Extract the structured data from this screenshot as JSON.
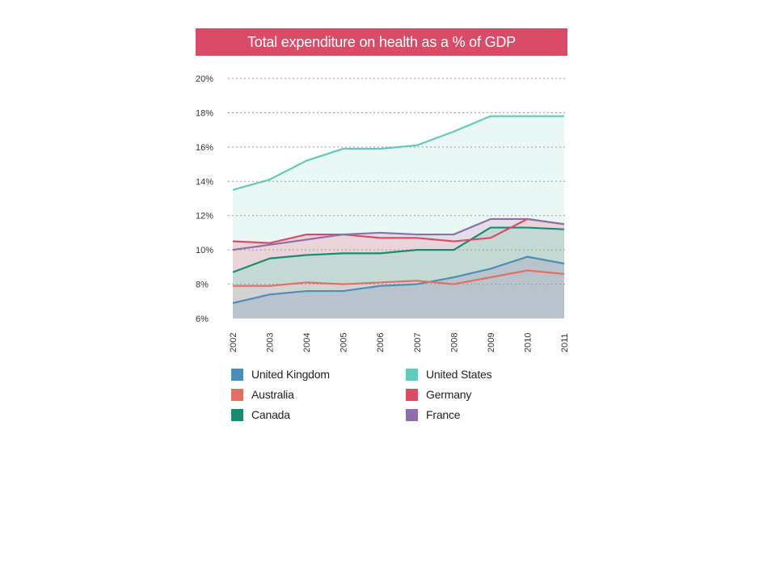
{
  "chart_data": {
    "type": "area",
    "title": "Total expenditure on health as a % of GDP",
    "title_bg_color": "#d94b66",
    "x": [
      "2002",
      "2003",
      "2004",
      "2005",
      "2006",
      "2007",
      "2008",
      "2009",
      "2010",
      "2011"
    ],
    "ylim": [
      6,
      20
    ],
    "yticks": [
      "6%",
      "8%",
      "10%",
      "12%",
      "14%",
      "16%",
      "18%",
      "20%"
    ],
    "ytick_values": [
      6,
      8,
      10,
      12,
      14,
      16,
      18,
      20
    ],
    "grid": true,
    "legend_position": "bottom",
    "series": [
      {
        "name": "United States",
        "color": "#5fcbb8",
        "fill": "#e9f8f5",
        "values": [
          13.5,
          14.1,
          15.2,
          15.9,
          15.9,
          16.1,
          16.9,
          17.8,
          17.8,
          17.8
        ]
      },
      {
        "name": "France",
        "color": "#8e6fa8",
        "fill": "#e3dde8",
        "values": [
          10.0,
          10.3,
          10.6,
          10.9,
          11.0,
          10.9,
          10.9,
          11.8,
          11.8,
          11.5
        ]
      },
      {
        "name": "Germany",
        "color": "#d94b66",
        "fill": "#e8d4d9",
        "values": [
          10.5,
          10.4,
          10.9,
          10.9,
          10.7,
          10.7,
          10.5,
          10.7,
          11.8,
          11.5
        ]
      },
      {
        "name": "Canada",
        "color": "#1a8a70",
        "fill": "#c4d9d4",
        "values": [
          8.7,
          9.5,
          9.7,
          9.8,
          9.8,
          10.0,
          10.0,
          11.3,
          11.3,
          11.2
        ]
      },
      {
        "name": "Australia",
        "color": "#e0705f",
        "fill": "#d2d2d4",
        "values": [
          7.9,
          7.9,
          8.1,
          8.0,
          8.1,
          8.2,
          8.0,
          8.4,
          8.8,
          8.6
        ]
      },
      {
        "name": "United Kingdom",
        "color": "#4a90b5",
        "fill": "#b9c3cd",
        "values": [
          6.9,
          7.4,
          7.6,
          7.6,
          7.9,
          8.0,
          8.4,
          8.9,
          9.6,
          9.2
        ]
      }
    ],
    "legend": [
      {
        "name": "United Kingdom",
        "color": "#4a90b5"
      },
      {
        "name": "United States",
        "color": "#5fcbb8"
      },
      {
        "name": "Australia",
        "color": "#e0705f"
      },
      {
        "name": "Germany",
        "color": "#d94b66"
      },
      {
        "name": "Canada",
        "color": "#1a8a70"
      },
      {
        "name": "France",
        "color": "#8e6fa8"
      }
    ]
  }
}
